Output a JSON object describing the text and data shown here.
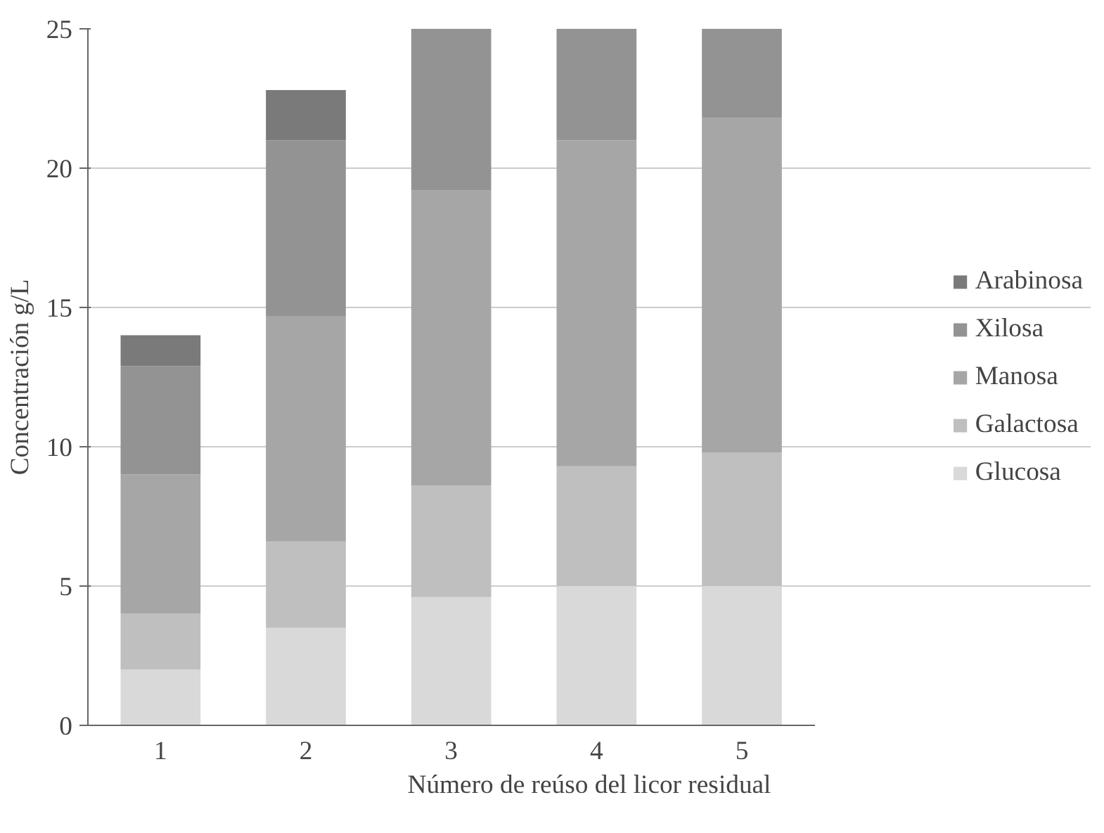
{
  "chart_data": {
    "type": "bar",
    "stacked": true,
    "categories": [
      "1",
      "2",
      "3",
      "4",
      "5"
    ],
    "xlabel": "Número de reúso del licor residual",
    "ylabel": "Concentración g/L",
    "ylim": [
      0,
      25
    ],
    "yticks": [
      0,
      5,
      10,
      15,
      20,
      25
    ],
    "grid": "y",
    "legend": "right",
    "series": [
      {
        "name": "Glucosa",
        "color": "#d9d9d9",
        "values": [
          2.0,
          3.5,
          4.6,
          5.0,
          5.0
        ]
      },
      {
        "name": "Galactosa",
        "color": "#bfbfbf",
        "values": [
          2.0,
          3.1,
          4.0,
          4.3,
          4.8
        ]
      },
      {
        "name": "Manosa",
        "color": "#a6a6a6",
        "values": [
          5.0,
          8.1,
          10.6,
          11.7,
          12.0
        ]
      },
      {
        "name": "Xilosa",
        "color": "#939393",
        "values": [
          3.9,
          6.3,
          5.8,
          4.0,
          3.2
        ]
      },
      {
        "name": "Arabinosa",
        "color": "#7a7a7a",
        "values": [
          1.1,
          1.8,
          null,
          null,
          null
        ]
      }
    ]
  }
}
